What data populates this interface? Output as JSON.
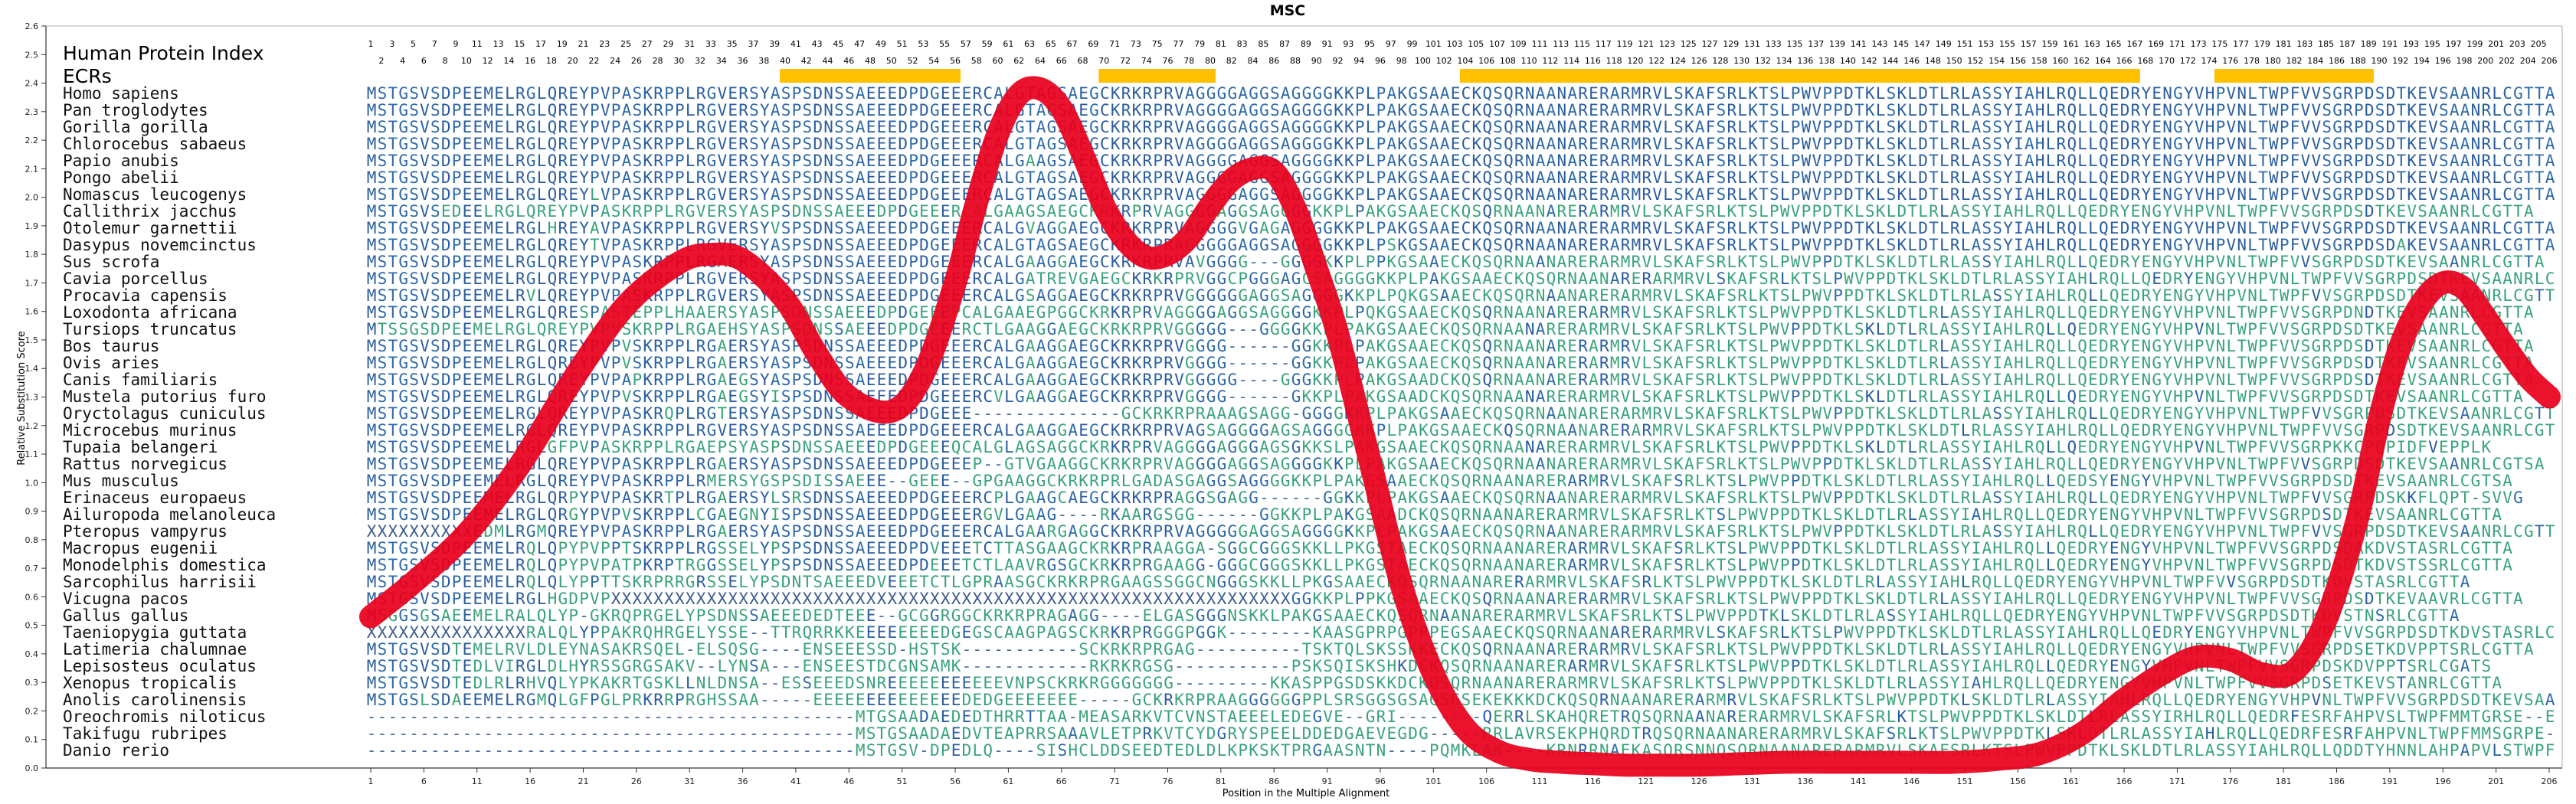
{
  "chart_data": {
    "type": "line",
    "title": "MSC",
    "xlabel": "Position in the Multiple Alignment",
    "ylabel": "Relative Substitution Score",
    "ylim": [
      0.0,
      2.6
    ],
    "xlim": [
      1,
      206
    ],
    "yticks": [
      "0.0",
      "0.1",
      "0.2",
      "0.3",
      "0.4",
      "0.5",
      "0.6",
      "0.7",
      "0.8",
      "0.9",
      "1.0",
      "1.1",
      "1.2",
      "1.3",
      "1.4",
      "1.5",
      "1.6",
      "1.7",
      "1.8",
      "1.9",
      "2.0",
      "2.1",
      "2.2",
      "2.3",
      "2.4",
      "2.5",
      "2.6"
    ],
    "xticks": [
      1,
      6,
      11,
      16,
      21,
      26,
      31,
      36,
      41,
      46,
      51,
      56,
      61,
      66,
      71,
      76,
      81,
      86,
      91,
      96,
      101,
      106,
      111,
      116,
      121,
      126,
      131,
      136,
      141,
      146,
      151,
      156,
      161,
      166,
      171,
      176,
      181,
      186,
      191,
      196,
      201,
      206
    ],
    "grid": false,
    "legend": "none",
    "series": [
      {
        "color": "#e8001c",
        "x": [
          1,
          5,
          10,
          15,
          20,
          25,
          30,
          33,
          36,
          40,
          43,
          46,
          50,
          53,
          56,
          58,
          60,
          62,
          64,
          66,
          68,
          70,
          72,
          74,
          76,
          78,
          80,
          82,
          84,
          86,
          88,
          90,
          92,
          95,
          98,
          101,
          104,
          107,
          110,
          113,
          116,
          119,
          122,
          126,
          130,
          134,
          138,
          142,
          146,
          150,
          154,
          158,
          162,
          166,
          170,
          173,
          176,
          179,
          182,
          185,
          188,
          190,
          192,
          194,
          196,
          198,
          200,
          202,
          204,
          206
        ],
        "values": [
          0.53,
          0.65,
          0.82,
          1.06,
          1.36,
          1.62,
          1.77,
          1.8,
          1.78,
          1.64,
          1.45,
          1.3,
          1.25,
          1.38,
          1.7,
          1.98,
          2.22,
          2.36,
          2.38,
          2.31,
          2.15,
          1.97,
          1.85,
          1.79,
          1.8,
          1.86,
          1.97,
          2.06,
          2.1,
          2.09,
          1.96,
          1.75,
          1.52,
          1.08,
          0.64,
          0.33,
          0.14,
          0.06,
          0.03,
          0.02,
          0.015,
          0.01,
          0.01,
          0.01,
          0.015,
          0.02,
          0.02,
          0.02,
          0.02,
          0.02,
          0.03,
          0.05,
          0.12,
          0.24,
          0.34,
          0.39,
          0.38,
          0.33,
          0.34,
          0.52,
          0.88,
          1.22,
          1.48,
          1.63,
          1.7,
          1.68,
          1.58,
          1.47,
          1.37,
          1.3
        ]
      }
    ],
    "hpi_label": "Human Protein Index",
    "ecrs_label": "ECRs",
    "hpi_odd": [
      "1",
      "3",
      "5",
      "7",
      "9",
      "11",
      "13",
      "15",
      "17",
      "19",
      "21",
      "23",
      "25",
      "27",
      "29",
      "31",
      "33",
      "35",
      "37",
      "39",
      "41",
      "43",
      "45",
      "47",
      "49",
      "51",
      "53",
      "55",
      "57",
      "59",
      "61",
      "63",
      "65",
      "67",
      "69",
      "71",
      "73",
      "75",
      "77",
      "79",
      "81",
      "83",
      "85",
      "87",
      "89",
      "91",
      "93",
      "95",
      "97",
      "99",
      "101",
      "103",
      "105",
      "107",
      "109",
      "111",
      "113",
      "115",
      "117",
      "119",
      "121",
      "123",
      "125",
      "127",
      "129",
      "131",
      "133",
      "135",
      "137",
      "139",
      "141",
      "143",
      "145",
      "147",
      "149",
      "151",
      "153",
      "155",
      "157",
      "159",
      "161",
      "163",
      "165",
      "167",
      "169",
      "171",
      "173",
      "175",
      "177",
      "179",
      "181",
      "183",
      "185",
      "187",
      "189",
      "191",
      "193",
      "195",
      "197",
      "199",
      "201",
      "203",
      "205"
    ],
    "hpi_even": [
      "2",
      "4",
      "6",
      "8",
      "10",
      "12",
      "14",
      "16",
      "18",
      "20",
      "22",
      "24",
      "26",
      "28",
      "30",
      "32",
      "34",
      "36",
      "38",
      "40",
      "42",
      "44",
      "46",
      "48",
      "50",
      "52",
      "54",
      "56",
      "58",
      "60",
      "62",
      "64",
      "66",
      "68",
      "70",
      "72",
      "74",
      "76",
      "78",
      "80",
      "82",
      "84",
      "86",
      "88",
      "90",
      "92",
      "94",
      "96",
      "98",
      "100",
      "102",
      "104",
      "106",
      "108",
      "110",
      "112",
      "114",
      "116",
      "118",
      "120",
      "122",
      "124",
      "126",
      "128",
      "130",
      "132",
      "134",
      "136",
      "138",
      "140",
      "142",
      "144",
      "146",
      "148",
      "150",
      "152",
      "154",
      "156",
      "158",
      "160",
      "162",
      "164",
      "166",
      "168",
      "170",
      "172",
      "174",
      "176",
      "178",
      "180",
      "182",
      "184",
      "186",
      "188",
      "190",
      "192",
      "194",
      "196",
      "198",
      "200",
      "202",
      "204",
      "206"
    ],
    "ecrs": [
      {
        "start": 40,
        "end": 56
      },
      {
        "start": 70,
        "end": 80
      },
      {
        "start": 104,
        "end": 139
      },
      {
        "start": 140,
        "end": 167
      },
      {
        "start": 175,
        "end": 189
      }
    ],
    "alignment": [
      {
        "species": "Homo sapiens",
        "seq": "MSTGSVSDPEEMELRGLQREYPVPASKRPPLRGVERSYASPSDNSSAEEEDPDGEEERCALGTAGSAEGCKRKRPRVAGGGGAGGSAGGGGKKPLPAKGSAAECKQSQRNAANARERARMRVLSKAFSRLKTSLPWVPPDTKLSKLDTLRLASSYIAHLRQLLQEDRYENGYVHPVNLTWPFVVSGRPDSDTKEVSAANRLCGTTA"
      },
      {
        "species": "Pan troglodytes",
        "seq": "MSTGSVSDPEEMELRGLQREYPVPASKRPPLRGVERSYASPSDNSSAEEEDPDGEEERCALGTAGSAEGCKRKRPRVAGGGGAGGSAGGGGKKPLPAKGSAAECKQSQRNAANARERARMRVLSKAFSRLKTSLPWVPPDTKLSKLDTLRLASSYIAHLRQLLQEDRYENGYVHPVNLTWPFVVSGRPDSDTKEVSAANRLCGTTA"
      },
      {
        "species": "Gorilla gorilla",
        "seq": "MSTGSVSDPEEMELRGLQREYPVPASKRPPLRGVERSYASPSDNSSAEEEDPDGEEERCALGTAGSAEGCKRKRPRVAGGGGAGGSAGGGGKKPLPAKGSAAECKQSQRNAANARERARMRVLSKAFSRLKTSLPWVPPDTKLSKLDTLRLASSYIAHLRQLLQEDRYENGYVHPVNLTWPFVVSGRPDSDTKEVSAANRLCGTTA"
      },
      {
        "species": "Chlorocebus sabaeus",
        "seq": "MSTGSVSDPEEMELRGLQREYPVPASKRPPLRGVERSYASPSDNSSAEEEDPDGEEERCALGTAGSAEGCKRKRPRVAGGGGAGGSAGGGGKKPLPAKGSAAECKQSQRNAANARERARMRVLSKAFSRLKTSLPWVPPDTKLSKLDTLRLASSYIAHLRQLLQEDRYENGYVHPVNLTWPFVVSGRPDSDTKEVSAANRLCGTTA"
      },
      {
        "species": "Papio anubis",
        "seq": "MSTGSVSDPEEMELRGLQREYPVPASKRPPLRGVERSYASPSDNSSAEEEDPDGEEERCALGAAGSAEGCKRKRPRVAGGGGAGGSAGGGGKKPLPAKGSAAECKQSQRNAANARERARMRVLSKAFSRLKTSLPWVPPDTKLSKLDTLRLASSYIAHLRQLLQEDRYENGYVHPVNLTWPFVVSGRPDSDTKEVSAANRLCGTTA"
      },
      {
        "species": "Pongo abelii",
        "seq": "MSTGSVSDPEEMELRGLQREYPVPASKRPPLRGVERSYASPSDNSSAEEEDPDGEEERCALGTAGSAEGCKRKRPRVAGGGGAGGSAGGGGKKPLPAKGSAAECKQSQRNAANARERARMRVLSKAFSRLKTSLPWVPPDTKLSKLDTLRLASSYIAHLRQLLQEDRYENGYVHPVNLTWPFVVSGRPDSDTKEVSAANRLCGTTA"
      },
      {
        "species": "Nomascus leucogenys",
        "seq": "MSTGSVSDPEEMELRGLQREYLVPASKRPPLRGVERSYASPSDNSSAEEEDPDGEEERCALGTAGSAEGCKRKRPRVAGGGGAGGSAGGGGKKPLPAKGSAAECKQSQRNAANARERARMRVLSKAFSRLKTSLPWVPPDTKLSKLDTLRLASSYIAHLRQLLQEDRYENGYVHPVNLTWPFVVSGRPDSDTKEVSAANRLCGTTA"
      },
      {
        "species": "Callithrix jacchus",
        "seq": "MSTGSVSEDEELRGLQREYPVPASKRPPLRGVERSYASPSDNSSAEEEDPDGEEERCALGAAGSAEGCKRKRPRVAGGGGAGGSAGGGGKKPLPAKGSAAECKQSQRNAANARERARMRVLSKAFSRLKTSLPWVPPDTKLSKLDTLRLASSYIAHLRQLLQEDRYENGYVHPVNLTWPFVVSGRPDSDTKEVSAANRLCGTTA"
      },
      {
        "species": "Otolemur garnettii",
        "seq": "MSTGSVSDPEEMELRGLHREYAVPASKRPPLRGVERSYVSPSDNSSAEEEDPDGEEERCALGVAGGAEGCKRKRPRVAGGGGVGAGAGGGGKKPLPAKGSAAECKQSQRNAANARERARMRVLSKAFSRLKTSLPWVPPDTKLSKLDTLRLASSYIAHLRQLLQEDRYENGYVHPVNLTWPFVVSGRPDSDTKEVSAANRLCGTTA"
      },
      {
        "species": "Dasypus novemcinctus",
        "seq": "MSTGSVSDPEEMELRGLQREYTVPASKRPPLRGVERSYASPSDNSSAEEEDPDGEEERCALGTAGSAEGCKRKRPRAGGGGGAGGSAGGGGKKPLPSKGSAAECKQSQRNAANARERARMRVLSKAFSRLKTSLPWVPPDTKLSKLDTLRLASSYIAHLRQLLQEDRYENGYVHPVNLTWPFVVSGRPDSDAKEVSAANRLCGTTA"
      },
      {
        "species": "Sus scrofa",
        "seq": "MSTGSVSDPEEMELRGLQREYPVPASKRPPLRGAERSYASPSDNSSAEEEDPDGEEERCALGAAGGAEGCKRKRPRVAVGGGG---GGGGKKPLPPKGSAAECKQSQRNAANARERARMRVLSKAFSRLKTSLPWVPPDTKLSKLDTLRLASSYIAHLRQLLQEDRYENGYVHPVNLTWPFVVSGRPDSDTKEVSAANRLCGTTA"
      },
      {
        "species": "Cavia porcellus",
        "seq": "MSTGSVSDPEEMELRGLQREYPVPASKRPPLRGVERSYASPSDNSSAEEEDPDGEEERCALGATREVGAEGCKRKRPRVGGCPGGGAGCSAGGGGKKPLPAKGSAAECKQSQRNAANARERARMRVLSKAFSRLKTSLPWVPPDTKLSKLDTLRLASSYIAHLRQLLQEDRYENGYVHPVNLTWPFVVSGRPDSDTKEVSAANRLCGTTA"
      },
      {
        "species": "Procavia capensis",
        "seq": "MSTGSVSDPEEMELRVLQREYPVPASKRPPLRGVERSYASPSDNSSAEEEDPDGEEERCALGSAGGAEGCKRKRPRVGGGGGGAGGSAGGGGKKPLPQKGSAAECKQSQRNAANARERARMRVLSKAFSRLKTSLPWVPPDTKLSKLDTLRLASSYIAHLRQLLQEDRYENGYVHPVNLTWPFVVSGRPDSDTKEVSAANRLCGTTA"
      },
      {
        "species": "Loxodonta africana",
        "seq": "MSTGSVSDPEEMELRGLQRESPASTEPPLHAAERSYASPSDNSSAEEEDPDGEEEPCALGAAEGPGGCKRKRPRVAGGGGAGGSAGGGGKKPLPQKGSAAECKQSQRNAANARERARMRVLSKAFSRLKTSLPWVPPDTKLSKLDTLRLASSYIAHLRQLLQEDRYENGYVHPVNLTWPFVVSGRPDNDTKEVSAANRLCGTTA"
      },
      {
        "species": "Tursiops truncatus",
        "seq": "MTSSGSDPEEMELRGLQREYPVPVSKRPPLRGAEHSYASPSDNSSAEEEDPDGEEERCTLGAAGGAEGCKRKRPRVGGGGG---GGGGKKPLPAKGSAAECKQSQRNAANARERARMRVLSKAFSRLKTSLPWVPPDTKLSKLDTLRLASSYIAHLRQLLQEDRYENGYVHPVNLTWPFVVSGRPDSDTKEVSAANRLCGTTA"
      },
      {
        "species": "Bos taurus",
        "seq": "MSTGSVSDPEEMELRGLQREYPVPVSKRPPLRGAERSYASPSDNSSAEEEDPDGEEERCALGAAGGAEGCKRKRPRVGGGG------GGKKPLPAKGSAAECKQSQRNAANARERARMRVLSKAFSRLKTSLPWVPPDTKLSKLDTLRLASSYIAHLRQLLQEDRYENGYVHPVNLTWPFVVSGRPDSDTKEVSAANRLCGTTA"
      },
      {
        "species": "Ovis aries",
        "seq": "MSTGSVSDPEEMELRGLQREYPVPVSKRPPLRGAERSYASPSDNSSAEEEDPDGEEERCALGAAGGAEGCKRKRPRVGGGG------GGKKPLPAKGSAAECKQSQRNAANARERARMRVLSKAFSRLKTSLPWVPPDTKLSKLDTLRLASSYIAHLRQLLQEDRYENGYVHPVNLTWPFVVSGRPDSDTKEVSAANRLCGTTA"
      },
      {
        "species": "Canis familiaris",
        "seq": "MSTGSVSDPEEMELRGLQREYPVPAPKRPPLRGAEGSYASPSDNSSAEEEDPDGEEERCALGAAGGAEGCKRKRPRVGGGGG----GGGKKPLPAKGSAADCKQSQRNAANARERARMRVLSKAFSRLKTSLPWVPPDTKLSKLDTLRLASSYIAHLRQLLQEDRYENGYVHPVNLTWPFVVSGRPDSDTKEVSAANRLCGTTA"
      },
      {
        "species": "Mustela putorius furo",
        "seq": "MSTGSVSDPEEMELRGLQREYPVPVSKRPPLRGAEGSYISPSDNSSAEEEDPDGEEERCVLGAAGGAEGCKRKRPRVGGGG------GKKPLPAKGSAADCKQSQRNAANARERARMRVLSKAFSRLKTSLPWVPPDTKLSKLDTLRLASSYIAHLRQLLQEDRYENGYVHPVNLTWPFVVSGRPDSDTKEVSAANRLCGTTA"
      },
      {
        "species": "Oryctolagus cuniculus",
        "seq": "MSTGSVSDPEEMELRGLQREYPVPASKRQPLRGTERSYASPSDNSSAEEEDPDGEEE--------------GCKRKRPRAAAGSAGG-GGGGKKPLPAKGSAAECKQSQRNAANARERARMRVLSKAFSRLKTSLPWVPPDTKLSKLDTLRLASSYIAHLRQLLQEDRYENGYVHPVNLTWPFVVSGRPDSDTKEVSAANRLCGTTA"
      },
      {
        "species": "Microcebus murinus",
        "seq": "MSTGSVSDPEEMELRGLQREYPVPASKRPPLRGVERSYASPSDNSSAEEEDPDGEEERCALGAAGGAEGCKRKRPRVAGSAGGGGAGSAGGGGKKPLPAKGSAAECKQSQRNAANARERARMRVLSKAFSRLKTSLPWVPPDTKLSKLDTLRLASSYIAHLRQLLQEDRYENGYVHPVNLTWPFVVSGRPDSDTKEVSAANRLCGTTA"
      },
      {
        "species": "Tupaia belangeri",
        "seq": "MSTGSVSDPEEMELRGLGFPVPASKRPPLRGAEPSYASPSDNSSAEEEDPDGEEEQCALGLAGSAGGCKRKRPRVAGGGGAGGGAGSGKKSLPAKGSAAECKQSQRNAANARERARMRVLSKAFSRLKTSLPWVPPDTKLSKLDTLRLASSYIAHLRQLLQEDRYENGYVHPVNLTWPFVVSGRPKKCPQPIDFVEPPLK"
      },
      {
        "species": "Rattus norvegicus",
        "seq": "MSTGSVSDPEEMELRGLQREYPVPASKRPPLRGAERSYASPSDNSSAEEEDPDGEEEP--GTVGAAGGCKRKRPRVAGGGGAGGSAGGGGKKPLPAKGSAAECKQSQRNAANARERARMRVLSKAFSRLKTSLPWVPPDTKLSKLDTLRLASSYIAHLRQLLQEDRYENGYVHPVNLTWPFVVSGRPDSDTKEVSAANRLCGTSA"
      },
      {
        "species": "Mus musculus",
        "seq": "MSTGSVSDPEEMELRGLQREYPVPASKRPPLRMERSYGSPSDISSAEEE--GEEE--GPGAAGGCKRKRPRLGADASGAGGSAGGGGKKPLPAKGSAAECKQSQRNAANARERARMRVLSKAFSRLKTSLPWVPPDTKLSKLDTLRLASSYIAHLRQLLQEDSYENGYVHPVNLTWPFVVSGRPDSDTKEVSAANRLCGTSA"
      },
      {
        "species": "Erinaceus europaeus",
        "seq": "MSTGSVSDPEEMELRGLQRPYPVPASKRTPLRGAERSYLSRSDNSSAEEEDPDGEEERCPLGAAGCAEGCKRKRPRAGGSGAGG------GGKKPLPAKGSAAECKQSQRNAANARERARMRVLSKAFSRLKTSLPWVPPDTKLSKLDTLRLASSYIAHLRQLLQEDRYENGYVHPVNLTWPFVVSGRPDSKKFLQPT-SVVG"
      },
      {
        "species": "Ailuropoda melanoleuca",
        "seq": "MSTGSVSDPEEMELRGLQRGYPVPVSKRPPLCGAEGNYISPSDNSSAEEEDPDGEEERGVLGAAG----RKAARGSGG------GGKKPLPAKGSAADCKQSQRNAANARERARMRVLSKAFSRLKTSLPWVPPDTKLSKLDTLRLASSYIAHLRQLLQEDRYENGYVHPVNLTWPFVVSGRPDSDTKEVSAANRLCGTTA"
      },
      {
        "species": "Pteropus vampyrus",
        "seq": "XXXXXXXXXXEDMLRGMQREYPVPASKRPPLRGAERSYASPSDNSSAEEEDPDGEEERCALGAARGAGGCKRKRPRVAGGGGGAGGSAGGGGKKPLPAKGSAAECKQSQRNAANARERARMRVLSKAFSRLKTSLPWVPPDTKLSKLDTLRLASSYIAHLRQLLQEDRYENGYVHPVNLTWPFVVSGRPDSDTKEVSAANRLCGTTA"
      },
      {
        "species": "Macropus eugenii",
        "seq": "MSTGSVSDPEEMELRQLQPYPVPPTSKRPPLRGSSELYPSPSDNSSAEEEDPDVEEETCTTASGAAGCKRKRPRAAGGA-SGGCGGGSKKLLPKGSTAECKQSQRNAANARERARMRVLSKAFSRLKTSLPWVPPDTKLSKLDTLRLASSYIAHLRQLLQEDRYENGYVHPVNLTWPFVVSGRPDSDAKDVSTASRLCGTTA"
      },
      {
        "species": "Monodelphis domestica",
        "seq": "MSTGSVSDPEEMELRQLQPYPVPATPKRPTRGGSSELYPSPSDNSSAEEEDPDEEETCTLAAVRGSGCKRKRPRGAAGG-GGGCGGGSKKLLPKGSTAECKQSQRNAANARERARMRVLSKAFSRLKTSLPWVPPDTKLSKLDTLRLASSYIAHLRQLLQEDRYENGYVHPVNLTWPFVVSGRPDSDTKDVSTSSRLCGTTA"
      },
      {
        "species": "Sarcophilus harrisii",
        "seq": "MSTGSVSDPEEMELRQLQLYPPTTSKRPRRGRSSELYPSDNTSAEEEDVEEETCTLGPRAASGCKRKRPRGAAGSSGGCNGGGSKKLLPKGSAAECKQSQRNAANARERARMRVLSKAFSRLKTSLPWVPPDTKLSKLDTLRLASSYIAHLRQLLQEDRYENGYVHPVNLTWPFVVSGRPDSDTKDVSTASRLCGTTA"
      },
      {
        "species": "Vicugna pacos",
        "seq": "MSTGSVSDPEEMELRGLHGDPVPXXXXXXXXXXXXXXXXXXXXXXXXXXXXXXXXXXXXXXXXXXXXXXXXXXXXXXXXXXXXXXXXGGKKPLPPKGSAAECKQSQRNAANARERARMRVLSKAFSRLKTSLPWVPPDTKLSKLDTLRLASSYIAHLRQLLQEDRYENGYVHPVNLTWPFVVSGRPDSDTKEVAAVRLCGTTA"
      },
      {
        "species": "Gallus gallus",
        "seq": "MSGGSGSAEEMELRALQLYP-GKRQPRGELYPSDNSSAEEEDEDTEEE--GCGGRGGCKRKRPRAGAGG----ELGASGGGNSKKLPAKGSAAECKQSQRNAANARERARMRVLSKAFSRLKTSLPWVPPDTKLSKLDTLRLASSYIAHLRQLLQEDRYENGYVHPVNLTWPFVVSGRPDSDTKDVSTNSRLCGTTA"
      },
      {
        "species": "Taeniopygia guttata",
        "seq": "XXXXXXXXXXXXXXXRALQLYPPAKRQHRGELYSSE--TTRQRRKKEEEEEEEEDGEGSCAAGPAGSCKRKRPRGGGPGGK--------KAASGPRPGPPPEGSAAECKQSQRNAANARERARMRVLSKAFSRLKTSLPWVPPDTKLSKLDTLRLASSYIAHLRQLLQEDRYENGYVHPVNLTWPFVVSGRPDSDTKDVSTASRLCGTTA"
      },
      {
        "species": "Latimeria chalumnae",
        "seq": "MSTGSVSDTEMELRVLDLEYNASAKRSQEL-ELSQSG----ENSEEESSD-HSTSK-----------SCKRKRPRGAG----------TSKTQLSKSSKKECKQSQRNAANARERARMRVLSKAFSRLKTSLPWVPPDTKLSKLDTLRLASSYIAHLRQLLQEDRYENGYVHPVNLTWPFVVSGRPDSETKDVPPTSRLCGTTA"
      },
      {
        "species": "Lepisosteus oculatus",
        "seq": "MSTGSVSDTEDLVIRGLDLHYRSSGRGSAKV--LYNSA---ENSEESTDCGNSAMK------------RKRKRGSG-----------PSKSQISKSHKDCKQSQRNAANARERARMRVLSKAFSRLKTSLPWVPPDTKLSKLDTLRLASSYIAHLRQLLQEDRYENGYVHPVNLTWPFVVSGRPDSKDVPPTSRLCGATS"
      },
      {
        "species": "Xenopus tropicalis",
        "seq": "MSTGSVSDTEDLRLRHVQLYPKAKRTGSKLLNLDNSA--ESSEEEDSNREEEEEEEEEEEVNPSCKRKRGGGGGGG---------KKASPPGSDSKKDCKQSQRNAANARERARMRVLSKAFSRLKTSLPWVPPDTKLSKLDTLRLASSYIAHLRQLLQEDRYENGYVHPVNLTWPFVVSGRPDSETKEVSTANRLCGTTA"
      },
      {
        "species": "Anolis carolinensis",
        "seq": "MSTGSLSDAEEMELRGMQLGFPGLPRKRRPRGHSSAA-----EEEEEEEEEEEEEEDEDGEEEEEEE-----GCKRKRPRAAGGGGGGPPLSRSGGSGSAGSGSEKEKKKDCKQSQRNAANARERARMRVLSKAFSRLKTSLPWVPPDTKLSKLDTLRLASSYIAHLRQLLQEDRYENGYVHPVNLTWPFVVSGRPDSDTKEVSAANRLCGTTA"
      },
      {
        "species": "Oreochromis niloticus",
        "seq": "----------------------------------------------MTGSAADAEDEDTHRRTTAA-MEASARKVTCVNSTAEEELEDEGVE--GRI--------QERRLSKAHQRETRQSQRNAANARERARMRVLSKAFSRLKTSLPWVPPDTKLSKLDTLRLASSYIRHLRQLLQEDRFESRFAHPVSLTWPFMMTGRSE--EDISSSRLCGATA"
      },
      {
        "species": "Takifugu rubripes",
        "seq": "----------------------------------------------MSTGSAADAEDVTEAPRRSAAAVLETPRKVTCYDGRYSPEELDDEDGAEVEGDG-----RRLAVRSEKPHQRDTRQSQRNAANARERARMRVLSKAFSRLKTSLPWVPPDTKLSKLDTLRLASSYIAHLRQLLQEDRFESRFAHPVNLTWPFMMSGRPE--NSQDMSSTRLCGATA"
      },
      {
        "species": "Danio rerio",
        "seq": "----------------------------------------------MSTGSV-DPEDLQ----SISHCLDDSEEDTEDLDLKPKSKTPRGAASNTN----PQMKLAK----KRNRRNAEKASQRSNNQSQRNAANARERARMRVLSKAFSRLKTSLPWVPPDTKLSKLDTLRLASSYIAHLRQLLQDDTYHNNLAHPAPVLSTWPFVVSARSE-DTKDISAAVRLCGATA"
      }
    ]
  }
}
